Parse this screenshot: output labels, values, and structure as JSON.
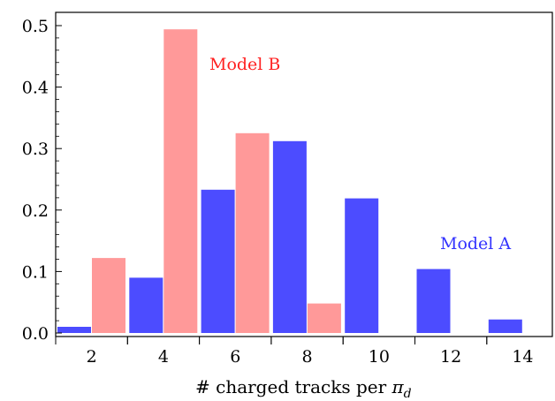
{
  "chart_data": {
    "type": "bar",
    "categories": [
      "2",
      "4",
      "6",
      "8",
      "10",
      "12",
      "14"
    ],
    "series": [
      {
        "name": "Model A",
        "color": "#4c4cff",
        "values": [
          0.01,
          0.09,
          0.233,
          0.312,
          0.219,
          0.104,
          0.022
        ]
      },
      {
        "name": "Model B",
        "color": "#ff9999",
        "values": [
          0.122,
          0.494,
          0.325,
          0.048,
          0.0,
          0.0,
          0.0
        ]
      }
    ],
    "xlabel": "# charged tracks per π_d",
    "xlabel_main": "# charged tracks per ",
    "xlabel_symbol": "π",
    "xlabel_subscript": "d",
    "ylabel": "",
    "yticks": [
      "0.0",
      "0.1",
      "0.2",
      "0.3",
      "0.4",
      "0.5"
    ],
    "ylim": [
      0,
      0.5
    ],
    "grid": false,
    "series_label_color_a": "#3333ff",
    "series_label_color_b": "#ff2222"
  }
}
